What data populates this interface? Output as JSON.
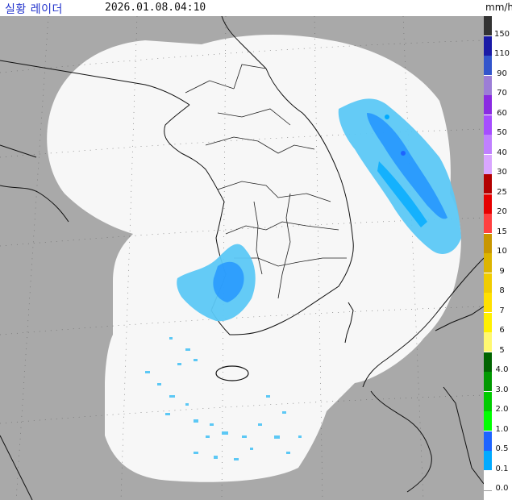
{
  "header": {
    "title": "실황 레이더",
    "timestamp": "2026.01.08.04:10",
    "unit": "mm/h"
  },
  "colors": {
    "land": "#a9a9a9",
    "radar_coverage": "#f7f7f7",
    "coastline": "#111111",
    "boundary": "#222222",
    "grid": "#555555",
    "echo_light": "#5cc8f5",
    "echo_mid": "#1e90ff"
  },
  "legend": [
    {
      "label": "150",
      "color": "#333333"
    },
    {
      "label": "110",
      "color": "#1a1aa6"
    },
    {
      "label": "90",
      "color": "#3355cc"
    },
    {
      "label": "70",
      "color": "#9c7ed6"
    },
    {
      "label": "60",
      "color": "#8a2be2"
    },
    {
      "label": "50",
      "color": "#a64dff"
    },
    {
      "label": "40",
      "color": "#c080ff"
    },
    {
      "label": "30",
      "color": "#d9a6ff"
    },
    {
      "label": "25",
      "color": "#b30000"
    },
    {
      "label": "20",
      "color": "#e60000"
    },
    {
      "label": "15",
      "color": "#ff4040"
    },
    {
      "label": "10",
      "color": "#c89600"
    },
    {
      "label": "9",
      "color": "#dcb400"
    },
    {
      "label": "8",
      "color": "#f0cc00"
    },
    {
      "label": "7",
      "color": "#ffe000"
    },
    {
      "label": "6",
      "color": "#fff000"
    },
    {
      "label": "5",
      "color": "#fff870"
    },
    {
      "label": "4.0",
      "color": "#006400"
    },
    {
      "label": "3.0",
      "color": "#009900"
    },
    {
      "label": "2.0",
      "color": "#00cc00"
    },
    {
      "label": "1.0",
      "color": "#00ff00"
    },
    {
      "label": "0.5",
      "color": "#1e64ff"
    },
    {
      "label": "0.1",
      "color": "#00aaff"
    },
    {
      "label": "0.0",
      "color": "#ffffff"
    }
  ]
}
